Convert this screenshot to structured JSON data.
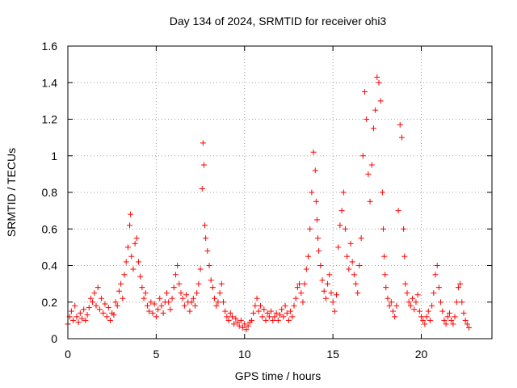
{
  "chart_data": {
    "type": "scatter",
    "title": "Day 134 of 2024, SRMTID for receiver ohi3",
    "xlabel": "GPS time / hours",
    "ylabel": "SRMTID / TECUs",
    "xlim": [
      0,
      24
    ],
    "ylim": [
      0,
      1.6
    ],
    "x_ticks": [
      0,
      5,
      10,
      15,
      20
    ],
    "x_tick_labels": [
      "0",
      "5",
      "10",
      "15",
      "20"
    ],
    "y_ticks": [
      0,
      0.2,
      0.4,
      0.6,
      0.8,
      1,
      1.2,
      1.4,
      1.6
    ],
    "y_tick_labels": [
      "0",
      "0.2",
      "0.4",
      "0.6",
      "0.8",
      "1",
      "1.2",
      "1.4",
      "1.6"
    ],
    "grid": true,
    "marker": "+",
    "marker_color": "#ff0000",
    "series": [
      {
        "name": "SRMTID",
        "x": [
          0.0,
          0.1,
          0.2,
          0.3,
          0.4,
          0.5,
          0.6,
          0.7,
          0.8,
          0.9,
          1.0,
          1.1,
          1.2,
          1.3,
          1.4,
          1.5,
          1.6,
          1.7,
          1.8,
          1.9,
          2.0,
          2.1,
          2.2,
          2.3,
          2.4,
          2.5,
          2.6,
          2.7,
          2.8,
          2.9,
          3.0,
          3.1,
          3.2,
          3.3,
          3.4,
          3.5,
          3.55,
          3.6,
          3.7,
          3.8,
          3.9,
          4.0,
          4.1,
          4.2,
          4.3,
          4.4,
          4.5,
          4.6,
          4.7,
          4.8,
          4.9,
          5.0,
          5.1,
          5.2,
          5.3,
          5.4,
          5.5,
          5.6,
          5.7,
          5.8,
          5.9,
          6.0,
          6.1,
          6.2,
          6.3,
          6.4,
          6.5,
          6.6,
          6.7,
          6.8,
          6.9,
          7.0,
          7.1,
          7.2,
          7.3,
          7.4,
          7.5,
          7.6,
          7.65,
          7.7,
          7.75,
          7.8,
          7.9,
          8.0,
          8.1,
          8.2,
          8.3,
          8.4,
          8.5,
          8.6,
          8.7,
          8.8,
          8.9,
          9.0,
          9.1,
          9.2,
          9.3,
          9.4,
          9.5,
          9.6,
          9.7,
          9.8,
          9.9,
          10.0,
          10.1,
          10.2,
          10.3,
          10.4,
          10.5,
          10.6,
          10.7,
          10.8,
          10.9,
          11.0,
          11.1,
          11.2,
          11.3,
          11.4,
          11.5,
          11.6,
          11.7,
          11.8,
          11.9,
          12.0,
          12.1,
          12.2,
          12.3,
          12.4,
          12.5,
          12.6,
          12.7,
          12.8,
          12.9,
          13.0,
          13.1,
          13.2,
          13.3,
          13.4,
          13.5,
          13.6,
          13.7,
          13.8,
          13.9,
          14.0,
          14.05,
          14.1,
          14.15,
          14.2,
          14.3,
          14.4,
          14.5,
          14.6,
          14.7,
          14.8,
          14.9,
          15.0,
          15.1,
          15.2,
          15.3,
          15.4,
          15.5,
          15.6,
          15.7,
          15.8,
          15.9,
          16.0,
          16.1,
          16.2,
          16.3,
          16.4,
          16.5,
          16.6,
          16.7,
          16.8,
          16.9,
          17.0,
          17.1,
          17.2,
          17.3,
          17.4,
          17.5,
          17.6,
          17.7,
          17.8,
          17.85,
          17.9,
          17.95,
          18.0,
          18.1,
          18.2,
          18.3,
          18.4,
          18.5,
          18.6,
          18.7,
          18.8,
          18.9,
          19.0,
          19.05,
          19.1,
          19.2,
          19.3,
          19.4,
          19.5,
          19.6,
          19.7,
          19.8,
          19.9,
          20.0,
          20.1,
          20.2,
          20.3,
          20.4,
          20.5,
          20.6,
          20.7,
          20.8,
          20.9,
          21.0,
          21.1,
          21.2,
          21.3,
          21.4,
          21.5,
          21.6,
          21.7,
          21.8,
          21.9,
          22.0,
          22.1,
          22.2,
          22.3,
          22.4,
          22.5,
          22.6,
          22.7
        ],
        "y": [
          0.08,
          0.12,
          0.15,
          0.1,
          0.18,
          0.12,
          0.09,
          0.14,
          0.11,
          0.16,
          0.1,
          0.13,
          0.17,
          0.22,
          0.2,
          0.25,
          0.18,
          0.28,
          0.16,
          0.22,
          0.14,
          0.19,
          0.12,
          0.17,
          0.1,
          0.14,
          0.13,
          0.2,
          0.18,
          0.26,
          0.3,
          0.22,
          0.35,
          0.42,
          0.5,
          0.62,
          0.68,
          0.45,
          0.38,
          0.52,
          0.55,
          0.42,
          0.34,
          0.28,
          0.22,
          0.25,
          0.18,
          0.15,
          0.2,
          0.14,
          0.19,
          0.12,
          0.16,
          0.22,
          0.18,
          0.14,
          0.2,
          0.25,
          0.2,
          0.16,
          0.22,
          0.28,
          0.35,
          0.4,
          0.3,
          0.25,
          0.22,
          0.18,
          0.24,
          0.2,
          0.15,
          0.2,
          0.22,
          0.18,
          0.25,
          0.3,
          0.38,
          0.82,
          1.07,
          0.95,
          0.62,
          0.55,
          0.48,
          0.4,
          0.32,
          0.28,
          0.22,
          0.18,
          0.2,
          0.25,
          0.3,
          0.2,
          0.15,
          0.12,
          0.1,
          0.14,
          0.12,
          0.08,
          0.11,
          0.09,
          0.07,
          0.1,
          0.06,
          0.08,
          0.05,
          0.07,
          0.09,
          0.1,
          0.14,
          0.18,
          0.22,
          0.15,
          0.18,
          0.12,
          0.16,
          0.1,
          0.14,
          0.12,
          0.15,
          0.1,
          0.12,
          0.14,
          0.1,
          0.13,
          0.16,
          0.12,
          0.18,
          0.14,
          0.1,
          0.15,
          0.12,
          0.18,
          0.22,
          0.28,
          0.3,
          0.25,
          0.2,
          0.3,
          0.38,
          0.45,
          0.6,
          0.8,
          1.02,
          0.92,
          0.75,
          0.65,
          0.55,
          0.48,
          0.4,
          0.32,
          0.26,
          0.22,
          0.3,
          0.35,
          0.25,
          0.2,
          0.15,
          0.24,
          0.5,
          0.62,
          0.7,
          0.8,
          0.6,
          0.45,
          0.38,
          0.52,
          0.42,
          0.35,
          0.3,
          0.25,
          0.4,
          0.55,
          1.0,
          1.35,
          1.2,
          0.9,
          0.75,
          0.95,
          1.15,
          1.25,
          1.43,
          1.4,
          1.3,
          0.8,
          0.6,
          0.45,
          0.35,
          0.28,
          0.22,
          0.18,
          0.2,
          0.15,
          0.12,
          0.18,
          0.7,
          1.17,
          1.1,
          0.6,
          0.45,
          0.3,
          0.25,
          0.2,
          0.18,
          0.22,
          0.16,
          0.2,
          0.24,
          0.15,
          0.12,
          0.1,
          0.08,
          0.12,
          0.15,
          0.1,
          0.18,
          0.25,
          0.35,
          0.4,
          0.28,
          0.2,
          0.15,
          0.1,
          0.08,
          0.12,
          0.14,
          0.1,
          0.08,
          0.12,
          0.2,
          0.28,
          0.3,
          0.2,
          0.14,
          0.1,
          0.08,
          0.06
        ]
      }
    ]
  }
}
